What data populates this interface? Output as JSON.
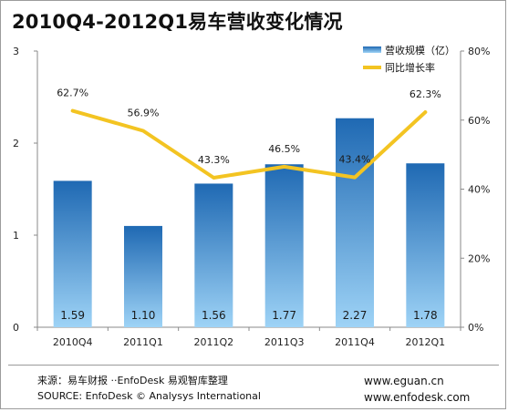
{
  "title": "2010Q4-2012Q1易车营收变化情况",
  "chart_data": {
    "type": "bar",
    "categories": [
      "2010Q4",
      "2011Q1",
      "2011Q2",
      "2011Q3",
      "2011Q4",
      "2012Q1"
    ],
    "series": [
      {
        "name": "营收规模（亿）",
        "type": "bar",
        "axis": "left",
        "values": [
          1.59,
          1.1,
          1.56,
          1.77,
          2.27,
          1.78
        ],
        "labels": [
          "1.59",
          "1.10",
          "1.56",
          "1.77",
          "2.27",
          "1.78"
        ]
      },
      {
        "name": "同比增长率",
        "type": "line",
        "axis": "right",
        "values": [
          62.7,
          56.9,
          43.3,
          46.5,
          43.4,
          62.3
        ],
        "labels": [
          "62.7%",
          "56.9%",
          "43.3%",
          "46.5%",
          "43.4%",
          "62.3%"
        ]
      }
    ],
    "left_axis": {
      "ylim": [
        0,
        3
      ],
      "ticks": [
        0,
        1,
        2,
        3
      ],
      "tick_labels": [
        "0",
        "1",
        "2",
        "3"
      ]
    },
    "right_axis": {
      "ylim": [
        0,
        80
      ],
      "ticks": [
        0,
        20,
        40,
        60,
        80
      ],
      "tick_labels": [
        "0%",
        "20%",
        "40%",
        "60%",
        "80%"
      ]
    },
    "legend_placement": "top-right",
    "grid": false,
    "colors": {
      "bar_top": "#1f69b3",
      "bar_bottom": "#9ed3f6",
      "line": "#f3c422",
      "axis": "#8a8a8a",
      "value_label": "#1a1a1a"
    }
  },
  "footer": {
    "source_cn": "来源：易车财报 ··EnfoDesk 易观智库整理",
    "source_en": "SOURCE: EnfoDesk © Analysys International",
    "site_1": "www.eguan.cn",
    "site_2": "www.enfodesk.com"
  }
}
